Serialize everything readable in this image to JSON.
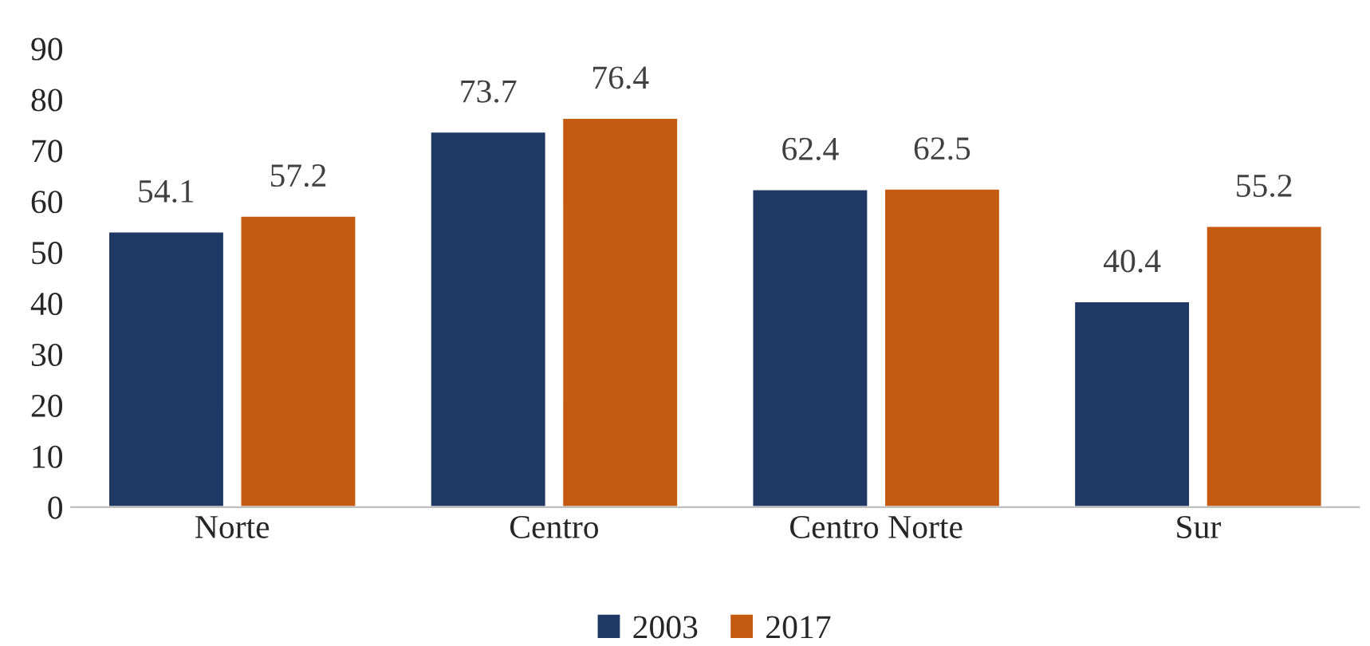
{
  "chart_data": {
    "type": "bar",
    "categories": [
      "Norte",
      "Centro",
      "Centro Norte",
      "Sur"
    ],
    "series": [
      {
        "name": "2003",
        "color": "#1f3864",
        "values": [
          54.1,
          73.7,
          62.4,
          40.4
        ]
      },
      {
        "name": "2017",
        "color": "#c55a11",
        "values": [
          57.2,
          76.4,
          62.5,
          55.2
        ]
      }
    ],
    "ylim": [
      0,
      90
    ],
    "yticks": [
      0,
      10,
      20,
      30,
      40,
      50,
      60,
      70,
      80,
      90
    ],
    "data_labels": true,
    "legend": "bottom",
    "grid": false
  }
}
